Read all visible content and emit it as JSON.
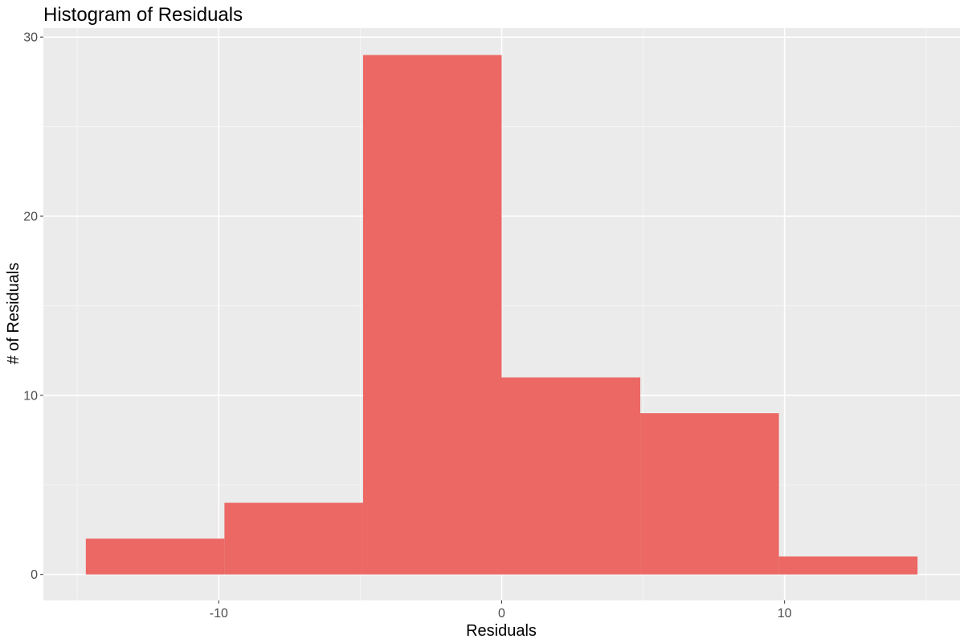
{
  "chart_data": {
    "type": "bar",
    "title": "Histogram of Residuals",
    "xlabel": "Residuals",
    "ylabel": "# of Residuals",
    "bins": [
      {
        "x0": -14.7,
        "x1": -9.8,
        "count": 2
      },
      {
        "x0": -9.8,
        "x1": -4.9,
        "count": 4
      },
      {
        "x0": -4.9,
        "x1": 0.0,
        "count": 29
      },
      {
        "x0": 0.0,
        "x1": 4.9,
        "count": 11
      },
      {
        "x0": 4.9,
        "x1": 9.8,
        "count": 9
      },
      {
        "x0": 9.8,
        "x1": 14.7,
        "count": 1
      }
    ],
    "xlim": [
      -16.2,
      16.2
    ],
    "ylim": [
      -1.45,
      30.5
    ],
    "xticks": [
      -10,
      0,
      10
    ],
    "xtick_labels": [
      "-10",
      "0",
      "10"
    ],
    "yticks": [
      0,
      10,
      20,
      30
    ],
    "ytick_labels": [
      "0",
      "10",
      "20",
      "30"
    ],
    "grid": true,
    "colors": {
      "bar": "#EB6864",
      "panel": "#EBEBEB",
      "grid_major": "#FFFFFF",
      "grid_minor": "#F5F5F5",
      "tick_text": "#4D4D4D"
    }
  }
}
